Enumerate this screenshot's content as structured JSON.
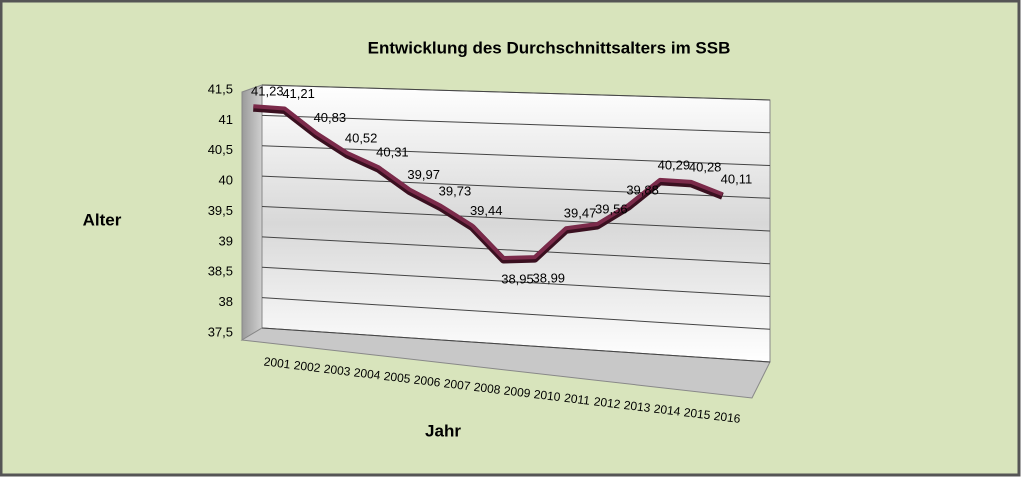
{
  "chart_data": {
    "type": "line",
    "title": "Entwicklung des Durchschnittsalters im SSB",
    "x_label": "Jahr",
    "y_label": "Alter",
    "categories": [
      "2001",
      "2002",
      "2003",
      "2004",
      "2005",
      "2006",
      "2007",
      "2008",
      "2009",
      "2010",
      "2011",
      "2012",
      "2013",
      "2014",
      "2015",
      "2016"
    ],
    "values": [
      41.23,
      41.21,
      40.83,
      40.52,
      40.31,
      39.97,
      39.73,
      39.44,
      38.95,
      38.99,
      39.47,
      39.56,
      39.88,
      40.29,
      40.28,
      40.11
    ],
    "value_labels": [
      "41,23",
      "41,21",
      "40,83",
      "40,52",
      "40,31",
      "39,97",
      "39,73",
      "39,44",
      "38,95",
      "38,99",
      "39,47",
      "39,56",
      "39,88",
      "40,29",
      "40,28",
      "40,11"
    ],
    "color": "#7b2a4a",
    "ylim": [
      37.5,
      41.5
    ],
    "yticks": [
      {
        "value": 37.5,
        "label": "37,5"
      },
      38,
      {
        "value": 38.5,
        "label": "38,5"
      },
      39,
      {
        "value": 39.5,
        "label": "39,5"
      },
      40,
      {
        "value": 40.5,
        "label": "40,5"
      },
      41,
      {
        "value": 41.5,
        "label": "41,5"
      }
    ],
    "grid": true
  }
}
